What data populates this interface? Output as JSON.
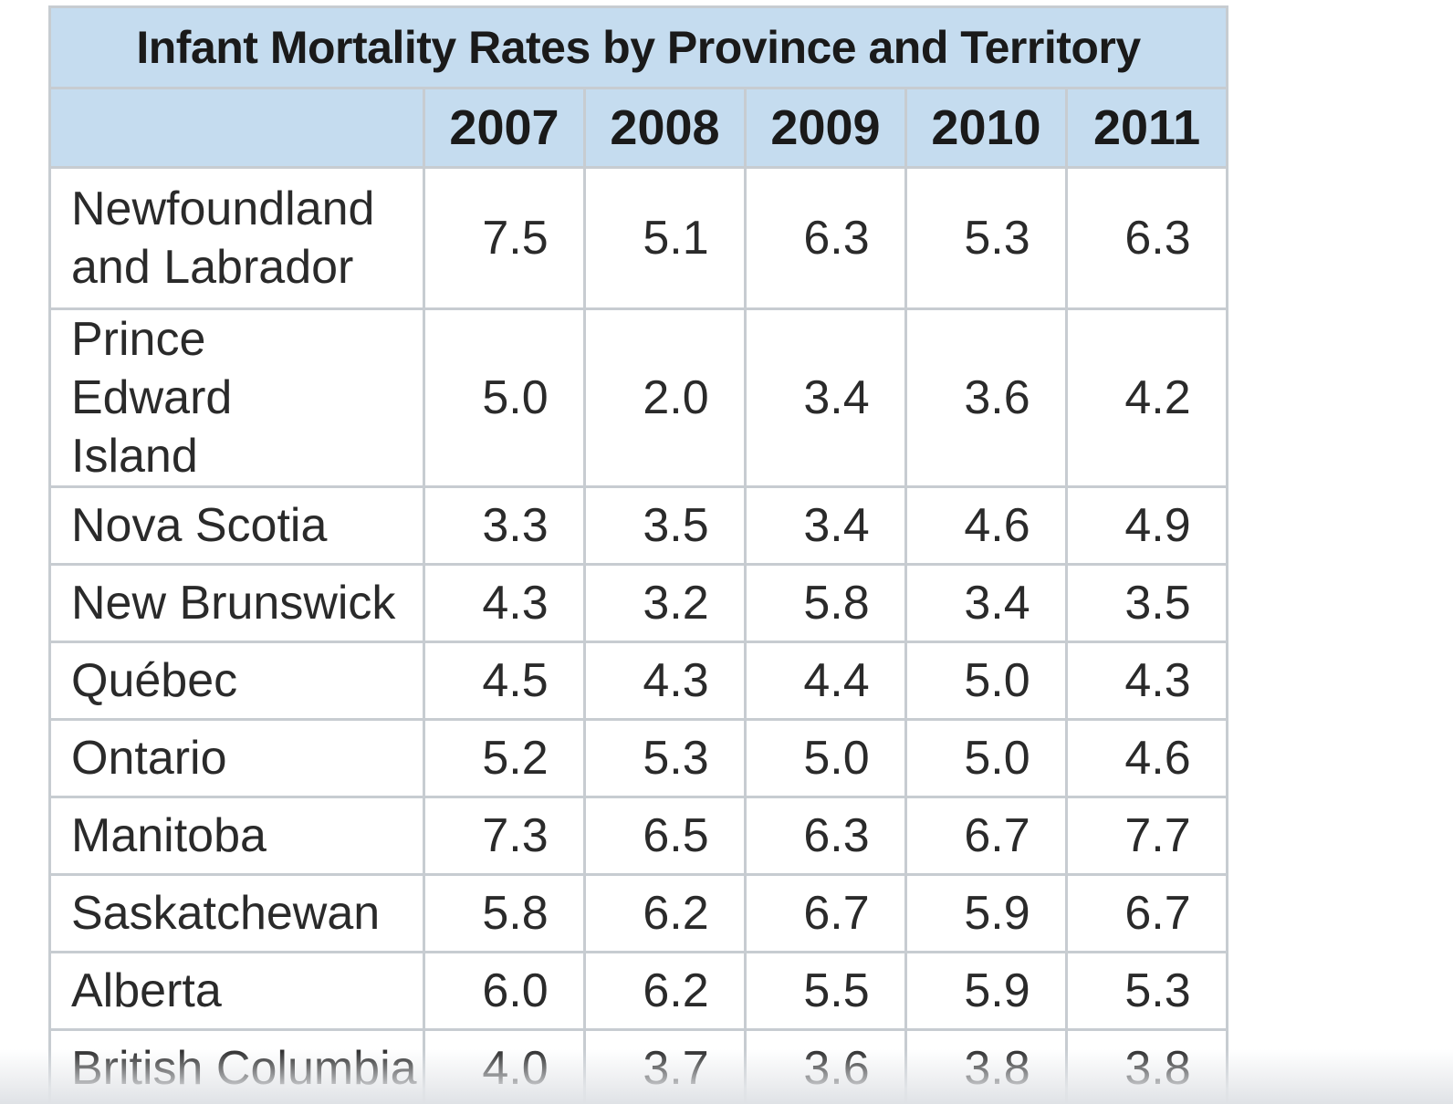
{
  "table": {
    "title": "Infant Mortality Rates by Province and Territory",
    "years": [
      "2007",
      "2008",
      "2009",
      "2010",
      "2011"
    ],
    "rows": [
      {
        "name": "Newfoundland and Labrador",
        "values": [
          "7.5",
          "5.1",
          "6.3",
          "5.3",
          "6.3"
        ]
      },
      {
        "name": "Prince Edward Island",
        "values": [
          "5.0",
          "2.0",
          "3.4",
          "3.6",
          "4.2"
        ]
      },
      {
        "name": "Nova Scotia",
        "values": [
          "3.3",
          "3.5",
          "3.4",
          "4.6",
          "4.9"
        ]
      },
      {
        "name": "New Brunswick",
        "values": [
          "4.3",
          "3.2",
          "5.8",
          "3.4",
          "3.5"
        ]
      },
      {
        "name": "Québec",
        "values": [
          "4.5",
          "4.3",
          "4.4",
          "5.0",
          "4.3"
        ]
      },
      {
        "name": "Ontario",
        "values": [
          "5.2",
          "5.3",
          "5.0",
          "5.0",
          "4.6"
        ]
      },
      {
        "name": "Manitoba",
        "values": [
          "7.3",
          "6.5",
          "6.3",
          "6.7",
          "7.7"
        ]
      },
      {
        "name": "Saskatchewan",
        "values": [
          "5.8",
          "6.2",
          "6.7",
          "5.9",
          "6.7"
        ]
      },
      {
        "name": "Alberta",
        "values": [
          "6.0",
          "6.2",
          "5.5",
          "5.9",
          "5.3"
        ]
      },
      {
        "name": "British Columbia",
        "values": [
          "4.0",
          "3.7",
          "3.6",
          "3.8",
          "3.8"
        ]
      }
    ]
  },
  "colors": {
    "header_bg": "#c5dcef",
    "border": "#c7ccd1"
  }
}
